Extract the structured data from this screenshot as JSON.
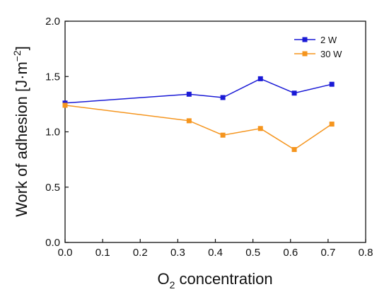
{
  "chart_data": {
    "type": "line",
    "xlabel": {
      "main": "O",
      "sub": "2",
      "rest": " concentration"
    },
    "ylabel": {
      "main": "Work of adhesion [J·m",
      "sup": "−2",
      "rest": "]"
    },
    "xlim": [
      0.0,
      0.8
    ],
    "ylim": [
      0.0,
      2.0
    ],
    "xticks": [
      "0.0",
      "0.1",
      "0.2",
      "0.3",
      "0.4",
      "0.5",
      "0.6",
      "0.7",
      "0.8"
    ],
    "yticks": [
      "0.0",
      "0.5",
      "1.0",
      "1.5",
      "2.0"
    ],
    "grid": false,
    "legend_position": "top-right",
    "series": [
      {
        "name": "2 W",
        "color": "#1a1ad6",
        "x": [
          0.0,
          0.33,
          0.42,
          0.52,
          0.61,
          0.71
        ],
        "y": [
          1.26,
          1.34,
          1.31,
          1.48,
          1.35,
          1.43
        ]
      },
      {
        "name": "30 W",
        "color": "#f5951e",
        "x": [
          0.0,
          0.33,
          0.42,
          0.52,
          0.61,
          0.71
        ],
        "y": [
          1.24,
          1.1,
          0.97,
          1.03,
          0.84,
          1.07
        ]
      }
    ]
  }
}
